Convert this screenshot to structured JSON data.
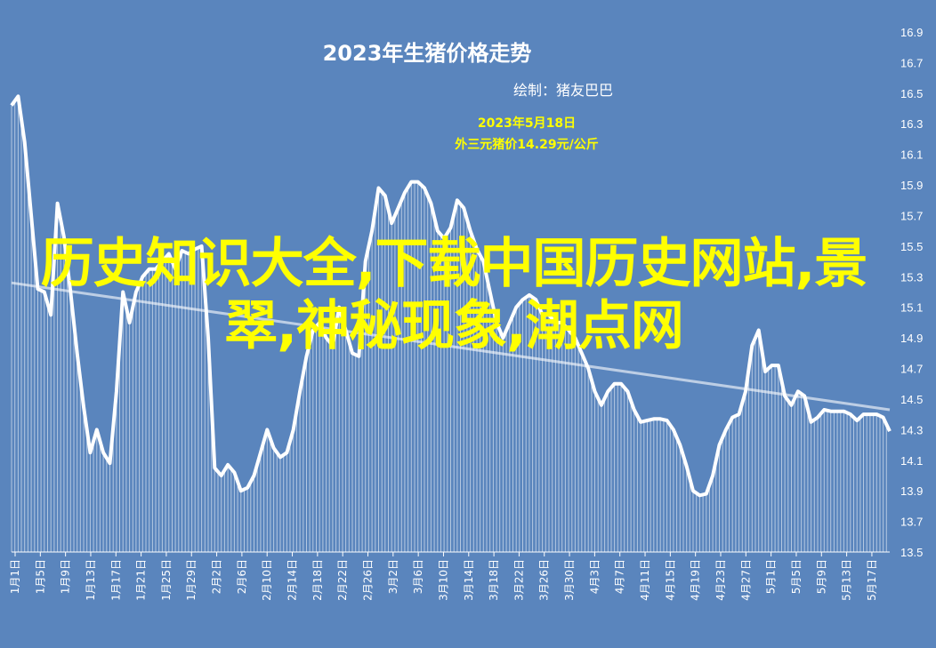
{
  "chart_data": {
    "type": "line",
    "title": "2023年生猪价格走势",
    "credit": "绘制：猪友巴巴",
    "annotation": {
      "line1": "2023年5月18日",
      "line2": "外三元猪价14.29元/公斤"
    },
    "ylim": [
      13.5,
      16.9
    ],
    "yticks": [
      13.5,
      13.7,
      13.9,
      14.1,
      14.3,
      14.5,
      14.7,
      14.9,
      15.1,
      15.3,
      15.5,
      15.7,
      15.9,
      16.1,
      16.3,
      16.5,
      16.7,
      16.9
    ],
    "x_tick_labels": [
      "1月1日",
      "1月5日",
      "1月9日",
      "1月13日",
      "1月17日",
      "1月21日",
      "1月25日",
      "1月29日",
      "2月2日",
      "2月6日",
      "2月10日",
      "2月14日",
      "2月18日",
      "2月22日",
      "2月26日",
      "3月2日",
      "3月6日",
      "3月10日",
      "3月14日",
      "3月18日",
      "3月22日",
      "3月26日",
      "3月30日",
      "4月3日",
      "4月7日",
      "4月11日",
      "4月15日",
      "4月19日",
      "4月23日",
      "4月27日",
      "5月1日",
      "5月5日",
      "5月9日",
      "5月13日",
      "5月17日"
    ],
    "grid": false,
    "series": [
      {
        "values": [
          16.42,
          16.48,
          16.18,
          15.7,
          15.22,
          15.2,
          15.05,
          15.78,
          15.56,
          15.2,
          14.8,
          14.45,
          14.15,
          14.3,
          14.15,
          14.08,
          14.55,
          15.2,
          15.0,
          15.2,
          15.3,
          15.35,
          15.35,
          15.4,
          15.45,
          15.35,
          15.47,
          15.45,
          15.48,
          15.5,
          14.9,
          14.05,
          14.0,
          14.07,
          14.02,
          13.9,
          13.92,
          14.0,
          14.15,
          14.3,
          14.18,
          14.12,
          14.15,
          14.3,
          14.55,
          14.78,
          14.95,
          15.0,
          14.9,
          14.85,
          15.1,
          14.95,
          14.8,
          14.78,
          15.4,
          15.6,
          15.88,
          15.83,
          15.65,
          15.75,
          15.85,
          15.92,
          15.92,
          15.88,
          15.78,
          15.6,
          15.55,
          15.62,
          15.8,
          15.75,
          15.6,
          15.48,
          15.4,
          15.2,
          15.0,
          14.9,
          15.0,
          15.1,
          15.15,
          15.18,
          15.15,
          15.05,
          15.05,
          15.0,
          15.0,
          14.95,
          14.9,
          14.8,
          14.7,
          14.55,
          14.46,
          14.55,
          14.6,
          14.6,
          14.55,
          14.43,
          14.35,
          14.36,
          14.37,
          14.37,
          14.36,
          14.3,
          14.2,
          14.06,
          13.9,
          13.87,
          13.88,
          14.0,
          14.2,
          14.3,
          14.38,
          14.4,
          14.55,
          14.85,
          14.95,
          14.68,
          14.72,
          14.72,
          14.52,
          14.46,
          14.55,
          14.52,
          14.35,
          14.38,
          14.43,
          14.42,
          14.42,
          14.42,
          14.4,
          14.36,
          14.4,
          14.4,
          14.4,
          14.38,
          14.29
        ]
      }
    ],
    "trendline": [
      15.26,
      14.43
    ]
  },
  "watermark": "历史知识大全,下载中国历史网站,景翠,神秘现象,潮点网"
}
